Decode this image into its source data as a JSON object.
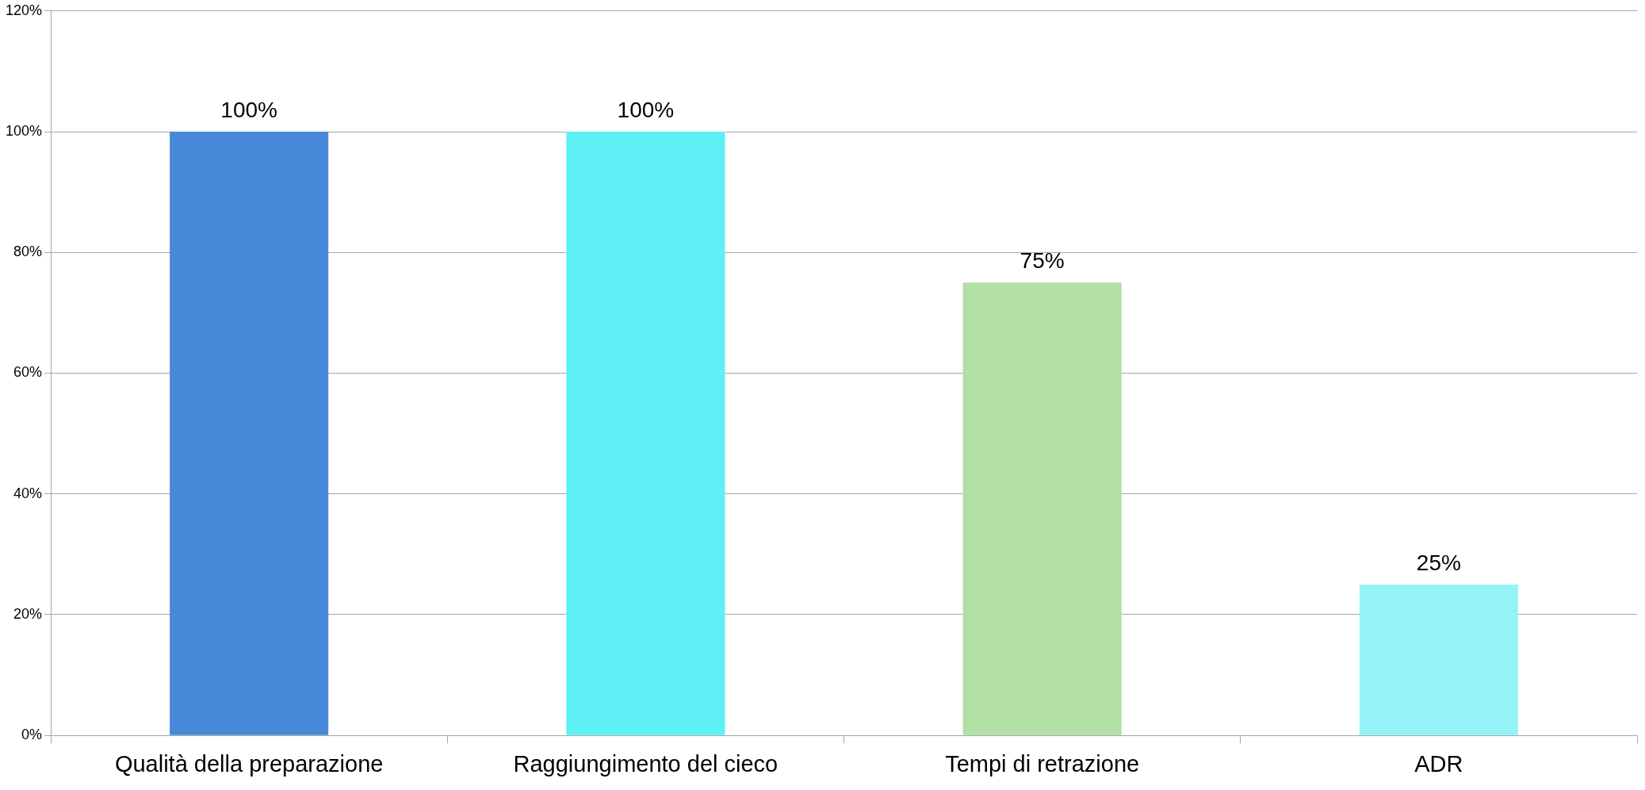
{
  "chart_data": {
    "type": "bar",
    "categories": [
      "Qualità della preparazione",
      "Raggiungimento del cieco",
      "Tempi di retrazione",
      "ADR"
    ],
    "values": [
      100,
      100,
      75,
      25
    ],
    "colors": [
      "#4689d8",
      "#5ff0f5",
      "#b1dfa4",
      "#95f3f8"
    ],
    "value_labels": [
      "100%",
      "100%",
      "75%",
      "25%"
    ],
    "ylim": [
      0,
      120
    ],
    "yticks": [
      {
        "value": 0,
        "label": "0%"
      },
      {
        "value": 20,
        "label": "20%"
      },
      {
        "value": 40,
        "label": "40%"
      },
      {
        "value": 60,
        "label": "60%"
      },
      {
        "value": 80,
        "label": "80%"
      },
      {
        "value": 100,
        "label": "100%"
      },
      {
        "value": 120,
        "label": "120%"
      }
    ],
    "grid": "y",
    "legend": false
  }
}
